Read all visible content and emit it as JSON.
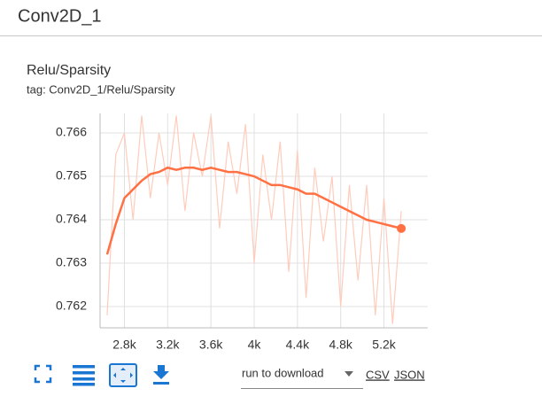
{
  "header": {
    "title": "Conv2D_1"
  },
  "chart_data": {
    "type": "line",
    "title": "Relu/Sparsity",
    "subtitle": "tag: Conv2D_1/Relu/Sparsity",
    "x": [
      2640,
      2720,
      2800,
      2880,
      2960,
      3040,
      3120,
      3200,
      3280,
      3360,
      3440,
      3520,
      3600,
      3680,
      3760,
      3840,
      3920,
      4000,
      4080,
      4160,
      4240,
      4320,
      4400,
      4480,
      4560,
      4640,
      4720,
      4800,
      4880,
      4960,
      5040,
      5120,
      5200,
      5280,
      5360
    ],
    "series": [
      {
        "color": "#ffccbc",
        "values": [
          0.7618,
          0.7655,
          0.766,
          0.764,
          0.7664,
          0.7645,
          0.766,
          0.7648,
          0.7664,
          0.7642,
          0.766,
          0.765,
          0.7664,
          0.7638,
          0.7658,
          0.7646,
          0.7662,
          0.763,
          0.7655,
          0.764,
          0.7658,
          0.7628,
          0.7656,
          0.7622,
          0.7652,
          0.7635,
          0.765,
          0.762,
          0.7648,
          0.7626,
          0.7648,
          0.7618,
          0.7645,
          0.7616,
          0.7642
        ]
      },
      {
        "color": "#ff7043",
        "values": [
          0.7632,
          0.7639,
          0.7645,
          0.7647,
          0.7649,
          0.76505,
          0.7651,
          0.7652,
          0.76515,
          0.7652,
          0.7652,
          0.76515,
          0.7652,
          0.76515,
          0.7651,
          0.7651,
          0.76505,
          0.765,
          0.7649,
          0.7648,
          0.7648,
          0.76475,
          0.7647,
          0.7646,
          0.7646,
          0.7645,
          0.7644,
          0.7643,
          0.7642,
          0.7641,
          0.764,
          0.76395,
          0.7639,
          0.76385,
          0.7638
        ]
      }
    ],
    "xlim": [
      2575,
      5605
    ],
    "ylim": [
      0.76151,
      0.76645
    ],
    "xticks": [
      {
        "value": 2800,
        "label": "2.8k"
      },
      {
        "value": 3200,
        "label": "3.2k"
      },
      {
        "value": 3600,
        "label": "3.6k"
      },
      {
        "value": 4000,
        "label": "4k"
      },
      {
        "value": 4400,
        "label": "4.4k"
      },
      {
        "value": 4800,
        "label": "4.8k"
      },
      {
        "value": 5200,
        "label": "5.2k"
      }
    ],
    "yticks": [
      0.762,
      0.763,
      0.764,
      0.765,
      0.766
    ],
    "grid": true
  },
  "controls": {
    "run_select": "run to download",
    "csv": "CSV",
    "json": "JSON"
  }
}
